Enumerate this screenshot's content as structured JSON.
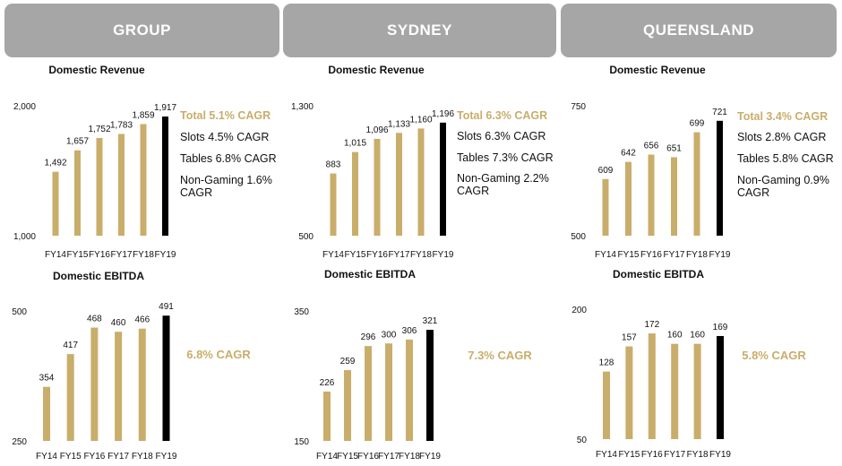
{
  "regions": [
    "GROUP",
    "SYDNEY",
    "QUEENSLAND"
  ],
  "colors": {
    "bar": "#c9ad6a",
    "highlight_bar": "#000000",
    "tab_bg": "#a6a6a6",
    "accent_text": "#c9ad6a"
  },
  "notes": [
    {
      "total": "Total 5.1% CAGR",
      "lines": [
        "Slots 4.5% CAGR",
        "Tables 6.8% CAGR",
        "Non-Gaming 1.6%",
        "CAGR"
      ]
    },
    {
      "total": "Total 6.3% CAGR",
      "lines": [
        "Slots 6.3% CAGR",
        "Tables 7.3% CAGR",
        "Non-Gaming 2.2%",
        "CAGR"
      ]
    },
    {
      "total": "Total 3.4% CAGR",
      "lines": [
        "Slots 2.8% CAGR",
        "Tables 5.8% CAGR",
        "Non-Gaming 0.9%",
        "CAGR"
      ]
    }
  ],
  "ebitda_cagr": [
    "6.8% CAGR",
    "7.3% CAGR",
    "5.8% CAGR"
  ],
  "chart_data": [
    {
      "type": "bar",
      "region": "GROUP",
      "title": "Domestic Revenue",
      "categories": [
        "FY14",
        "FY15",
        "FY16",
        "FY17",
        "FY18",
        "FY19"
      ],
      "values": [
        1492,
        1657,
        1752,
        1783,
        1859,
        1917
      ],
      "value_labels": [
        "1,492",
        "1,657",
        "1,752",
        "1,783",
        "1,859",
        "1,917"
      ],
      "ylim": [
        1000,
        2000
      ],
      "yticks": [
        "1,000",
        "2,000"
      ],
      "highlight": "FY19"
    },
    {
      "type": "bar",
      "region": "SYDNEY",
      "title": "Domestic Revenue",
      "categories": [
        "FY14",
        "FY15",
        "FY16",
        "FY17",
        "FY18",
        "FY19"
      ],
      "values": [
        883,
        1015,
        1096,
        1133,
        1160,
        1196
      ],
      "value_labels": [
        "883",
        "1,015",
        "1,096",
        "1,133",
        "1,160",
        "1,196"
      ],
      "ylim": [
        500,
        1300
      ],
      "yticks": [
        "500",
        "1,300"
      ],
      "highlight": "FY19"
    },
    {
      "type": "bar",
      "region": "QUEENSLAND",
      "title": "Domestic Revenue",
      "categories": [
        "FY14",
        "FY15",
        "FY16",
        "FY17",
        "FY18",
        "FY19"
      ],
      "values": [
        609,
        642,
        656,
        651,
        699,
        721
      ],
      "value_labels": [
        "609",
        "642",
        "656",
        "651",
        "699",
        "721"
      ],
      "ylim": [
        500,
        750
      ],
      "yticks": [
        "500",
        "750"
      ],
      "highlight": "FY19"
    },
    {
      "type": "bar",
      "region": "GROUP",
      "title": "Domestic EBITDA",
      "categories": [
        "FY14",
        "FY15",
        "FY16",
        "FY17",
        "FY18",
        "FY19"
      ],
      "values": [
        354,
        417,
        468,
        460,
        466,
        491
      ],
      "value_labels": [
        "354",
        "417",
        "468",
        "460",
        "466",
        "491"
      ],
      "ylim": [
        250,
        500
      ],
      "yticks": [
        "250",
        "500"
      ],
      "highlight": "FY19"
    },
    {
      "type": "bar",
      "region": "SYDNEY",
      "title": "Domestic EBITDA",
      "categories": [
        "FY14",
        "FY15",
        "FY16",
        "FY17",
        "FY18",
        "FY19"
      ],
      "values": [
        226,
        259,
        296,
        300,
        306,
        321
      ],
      "value_labels": [
        "226",
        "259",
        "296",
        "300",
        "306",
        "321"
      ],
      "ylim": [
        150,
        350
      ],
      "yticks": [
        "150",
        "350"
      ],
      "highlight": "FY19"
    },
    {
      "type": "bar",
      "region": "QUEENSLAND",
      "title": "Domestic EBITDA",
      "categories": [
        "FY14",
        "FY15",
        "FY16",
        "FY17",
        "FY18",
        "FY19"
      ],
      "values": [
        128,
        157,
        172,
        160,
        160,
        169
      ],
      "value_labels": [
        "128",
        "157",
        "172",
        "160",
        "160",
        "169"
      ],
      "ylim": [
        50,
        200
      ],
      "yticks": [
        "50",
        "200"
      ],
      "highlight": "FY19"
    }
  ]
}
